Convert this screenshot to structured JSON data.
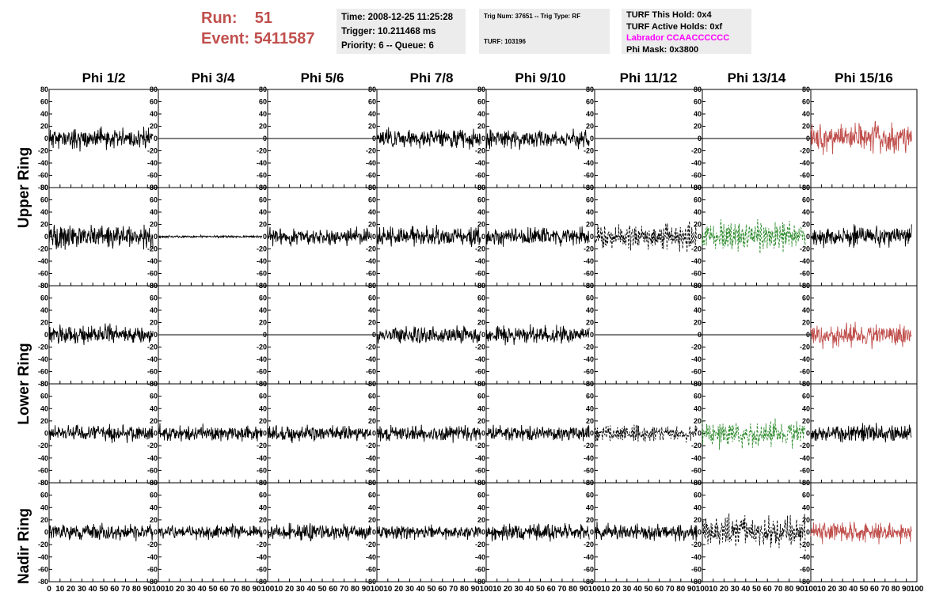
{
  "header": {
    "run_label": "Run:",
    "run_value": "51",
    "event_label": "Event:",
    "event_value": "5411587",
    "time": "Time: 2008-12-25 11:25:28",
    "trigger": "Trigger: 10.211468 ms",
    "priority": "Priority: 6 -- Queue: 6",
    "trig_num": "Trig Num: 37651 -- Trig Type: RF",
    "turf": "TURF: 103196",
    "turf_this_hold": "TURF This Hold: 0x4",
    "turf_active_holds": "TURF Active Holds: 0xf",
    "labrador": "Labrador CCAACCCCCC",
    "phi_mask": "Phi Mask: 0x3800"
  },
  "colors": {
    "header_red": "#c0504d",
    "labrador_pink": "#ff00ff",
    "trace_black": "#000000",
    "trace_red": "#c0504d",
    "trace_green": "#2e8b2e"
  },
  "chart_data": {
    "type": "line",
    "columns": [
      "Phi 1/2",
      "Phi 3/4",
      "Phi 5/6",
      "Phi 7/8",
      "Phi 9/10",
      "Phi 11/12",
      "Phi 13/14",
      "Phi 15/16"
    ],
    "row_groups": [
      "Upper Ring",
      "Lower Ring",
      "Nadir Ring"
    ],
    "xlim": [
      0,
      100
    ],
    "ylim": [
      -80,
      80
    ],
    "x_ticks": [
      0,
      10,
      20,
      30,
      40,
      50,
      60,
      70,
      80,
      90,
      100
    ],
    "y_ticks": [
      -80,
      -60,
      -40,
      -20,
      0,
      20,
      40,
      60,
      80
    ],
    "x_tick_labels": [
      "0",
      "10",
      "20",
      "30",
      "40",
      "50",
      "60",
      "70",
      "80",
      "90",
      "100"
    ],
    "y_tick_labels": [
      "-80",
      "-60",
      "-40",
      "-20",
      "0",
      "20",
      "40",
      "60",
      "80"
    ],
    "grid": false,
    "panels": [
      [
        {
          "style": "noise",
          "color": "black",
          "amp": 18,
          "seed": 11
        },
        {
          "style": "flat",
          "color": "black"
        },
        {
          "style": "flat",
          "color": "black"
        },
        {
          "style": "noise",
          "color": "black",
          "amp": 16,
          "seed": 14
        },
        {
          "style": "noise",
          "color": "black",
          "amp": 16,
          "seed": 15
        },
        {
          "style": "flat",
          "color": "black"
        },
        {
          "style": "flat",
          "color": "black"
        },
        {
          "style": "noise",
          "color": "red",
          "amp": 24,
          "seed": 18
        }
      ],
      [
        {
          "style": "noise",
          "color": "black",
          "amp": 20,
          "seed": 21
        },
        {
          "style": "quiet",
          "color": "black",
          "amp": 2,
          "seed": 22
        },
        {
          "style": "noise",
          "color": "black",
          "amp": 15,
          "seed": 23
        },
        {
          "style": "noise",
          "color": "black",
          "amp": 17,
          "seed": 24
        },
        {
          "style": "noise",
          "color": "black",
          "amp": 15,
          "seed": 25
        },
        {
          "style": "dashed",
          "color": "black",
          "amp": 22,
          "seed": 26
        },
        {
          "style": "dashed",
          "color": "green",
          "amp": 24,
          "seed": 27
        },
        {
          "style": "noise",
          "color": "black",
          "amp": 17,
          "seed": 28
        }
      ],
      [
        {
          "style": "noise",
          "color": "black",
          "amp": 16,
          "seed": 31
        },
        {
          "style": "flat",
          "color": "black"
        },
        {
          "style": "flat",
          "color": "black"
        },
        {
          "style": "noise",
          "color": "black",
          "amp": 15,
          "seed": 34
        },
        {
          "style": "noise",
          "color": "black",
          "amp": 15,
          "seed": 35
        },
        {
          "style": "flat",
          "color": "black"
        },
        {
          "style": "flat",
          "color": "black"
        },
        {
          "style": "noise",
          "color": "red",
          "amp": 20,
          "seed": 38
        }
      ],
      [
        {
          "style": "noise",
          "color": "black",
          "amp": 14,
          "seed": 41
        },
        {
          "style": "noise",
          "color": "black",
          "amp": 14,
          "seed": 42
        },
        {
          "style": "noise",
          "color": "black",
          "amp": 14,
          "seed": 43
        },
        {
          "style": "noise",
          "color": "black",
          "amp": 14,
          "seed": 44
        },
        {
          "style": "noise",
          "color": "black",
          "amp": 14,
          "seed": 45
        },
        {
          "style": "dashed",
          "color": "black",
          "amp": 14,
          "seed": 46
        },
        {
          "style": "dashed",
          "color": "green",
          "amp": 22,
          "seed": 47
        },
        {
          "style": "noise",
          "color": "black",
          "amp": 16,
          "seed": 48
        }
      ],
      [
        {
          "style": "noise",
          "color": "black",
          "amp": 14,
          "seed": 51
        },
        {
          "style": "noise",
          "color": "black",
          "amp": 13,
          "seed": 52
        },
        {
          "style": "noise",
          "color": "black",
          "amp": 14,
          "seed": 53
        },
        {
          "style": "noise",
          "color": "black",
          "amp": 12,
          "seed": 54
        },
        {
          "style": "noise",
          "color": "black",
          "amp": 14,
          "seed": 55
        },
        {
          "style": "noise",
          "color": "black",
          "amp": 14,
          "seed": 56
        },
        {
          "style": "dashed",
          "color": "black",
          "amp": 28,
          "seed": 57
        },
        {
          "style": "noise",
          "color": "red",
          "amp": 18,
          "seed": 58
        }
      ]
    ]
  }
}
